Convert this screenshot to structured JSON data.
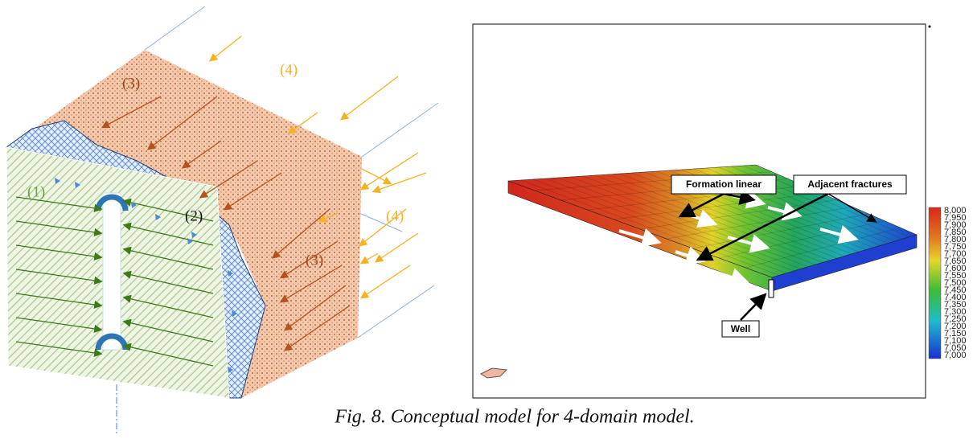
{
  "left_diagram": {
    "labels": [
      "(4)",
      "(3)",
      "(1)",
      "(2)",
      "(4)",
      "(3)"
    ]
  },
  "right_panel": {
    "callouts": [
      "Formation linear",
      "Adjacent fractures",
      "Well"
    ],
    "colorbar_labels": [
      "8,000",
      "7,950",
      "7,900",
      "7,850",
      "7,800",
      "7,750",
      "7,700",
      "7,650",
      "7,600",
      "7,550",
      "7,500",
      "7,450",
      "7,400",
      "7,350",
      "7,300",
      "7,250",
      "7,200",
      "7,150",
      "7,100",
      "7,050",
      "7,000"
    ]
  },
  "caption": "Fig. 8. Conceptual model for 4-domain model."
}
